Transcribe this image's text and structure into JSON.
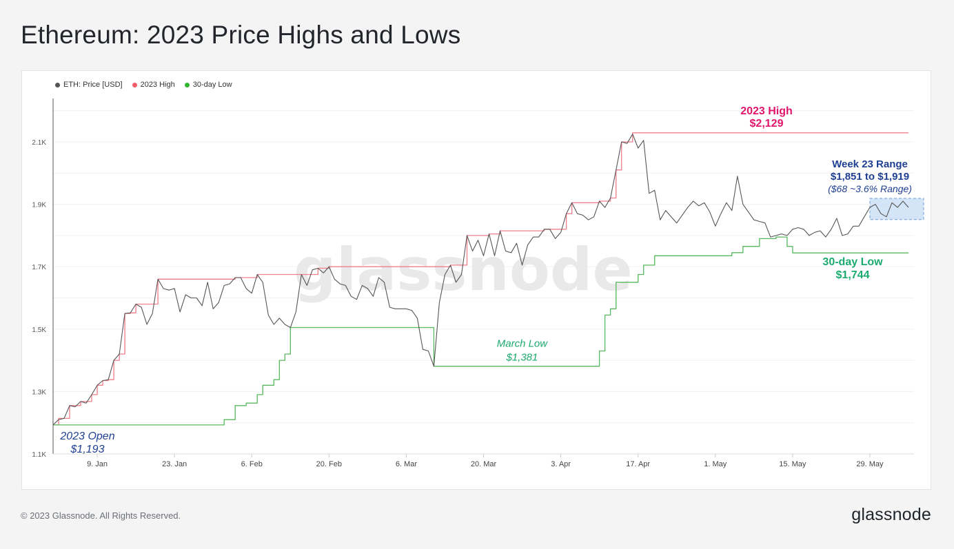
{
  "page": {
    "title": "Ethereum: 2023 Price Highs and Lows",
    "copyright": "© 2023 Glassnode. All Rights Reserved.",
    "logo": "glassnode",
    "watermark": "glassnode"
  },
  "colors": {
    "price": "#555555",
    "high": "#ef7f8a",
    "low": "#57b85d",
    "high_annotation": "#e0156b",
    "low_annotation": "#1bab6e",
    "blue_annotation": "#1f3f93",
    "range_fill": "#c7dcf5",
    "range_border": "#6b9bdc"
  },
  "chart_data": {
    "type": "line",
    "title": "Ethereum: 2023 Price Highs and Lows",
    "xlabel": "",
    "ylabel": "",
    "x_range": [
      "2023-01-01",
      "2023-06-06"
    ],
    "ylim": [
      1100,
      2250
    ],
    "yticks": [
      {
        "value": 1100,
        "label": "1.1K"
      },
      {
        "value": 1300,
        "label": "1.3K"
      },
      {
        "value": 1500,
        "label": "1.5K"
      },
      {
        "value": 1700,
        "label": "1.7K"
      },
      {
        "value": 1900,
        "label": "1.9K"
      },
      {
        "value": 2100,
        "label": "2.1K"
      }
    ],
    "xticks": [
      {
        "date": "2023-01-09",
        "label": "9. Jan"
      },
      {
        "date": "2023-01-23",
        "label": "23. Jan"
      },
      {
        "date": "2023-02-06",
        "label": "6. Feb"
      },
      {
        "date": "2023-02-20",
        "label": "20. Feb"
      },
      {
        "date": "2023-03-06",
        "label": "6. Mar"
      },
      {
        "date": "2023-03-20",
        "label": "20. Mar"
      },
      {
        "date": "2023-04-03",
        "label": "3. Apr"
      },
      {
        "date": "2023-04-17",
        "label": "17. Apr"
      },
      {
        "date": "2023-05-01",
        "label": "1. May"
      },
      {
        "date": "2023-05-15",
        "label": "15. May"
      },
      {
        "date": "2023-05-29",
        "label": "29. May"
      }
    ],
    "legend": {
      "placement": "top-left"
    },
    "grid": {
      "horizontal": true,
      "vertical": false
    },
    "series": [
      {
        "name": "ETH: Price [USD]",
        "points": [
          [
            "2023-01-01",
            1193
          ],
          [
            "2023-01-02",
            1210
          ],
          [
            "2023-01-03",
            1214
          ],
          [
            "2023-01-04",
            1255
          ],
          [
            "2023-01-05",
            1251
          ],
          [
            "2023-01-06",
            1268
          ],
          [
            "2023-01-07",
            1263
          ],
          [
            "2023-01-08",
            1290
          ],
          [
            "2023-01-09",
            1320
          ],
          [
            "2023-01-10",
            1335
          ],
          [
            "2023-01-11",
            1338
          ],
          [
            "2023-01-12",
            1400
          ],
          [
            "2023-01-13",
            1420
          ],
          [
            "2023-01-14",
            1550
          ],
          [
            "2023-01-15",
            1552
          ],
          [
            "2023-01-16",
            1580
          ],
          [
            "2023-01-17",
            1570
          ],
          [
            "2023-01-18",
            1515
          ],
          [
            "2023-01-19",
            1550
          ],
          [
            "2023-01-20",
            1660
          ],
          [
            "2023-01-21",
            1630
          ],
          [
            "2023-01-22",
            1625
          ],
          [
            "2023-01-23",
            1630
          ],
          [
            "2023-01-24",
            1555
          ],
          [
            "2023-01-25",
            1610
          ],
          [
            "2023-01-26",
            1600
          ],
          [
            "2023-01-27",
            1600
          ],
          [
            "2023-01-28",
            1575
          ],
          [
            "2023-01-29",
            1650
          ],
          [
            "2023-01-30",
            1565
          ],
          [
            "2023-01-31",
            1585
          ],
          [
            "2023-02-01",
            1640
          ],
          [
            "2023-02-02",
            1645
          ],
          [
            "2023-02-03",
            1665
          ],
          [
            "2023-02-04",
            1665
          ],
          [
            "2023-02-05",
            1630
          ],
          [
            "2023-02-06",
            1615
          ],
          [
            "2023-02-07",
            1675
          ],
          [
            "2023-02-08",
            1650
          ],
          [
            "2023-02-09",
            1545
          ],
          [
            "2023-02-10",
            1515
          ],
          [
            "2023-02-11",
            1535
          ],
          [
            "2023-02-12",
            1515
          ],
          [
            "2023-02-13",
            1505
          ],
          [
            "2023-02-14",
            1555
          ],
          [
            "2023-02-15",
            1675
          ],
          [
            "2023-02-16",
            1640
          ],
          [
            "2023-02-17",
            1690
          ],
          [
            "2023-02-18",
            1695
          ],
          [
            "2023-02-19",
            1680
          ],
          [
            "2023-02-20",
            1700
          ],
          [
            "2023-02-21",
            1660
          ],
          [
            "2023-02-22",
            1645
          ],
          [
            "2023-02-23",
            1640
          ],
          [
            "2023-02-24",
            1605
          ],
          [
            "2023-02-25",
            1595
          ],
          [
            "2023-02-26",
            1640
          ],
          [
            "2023-02-27",
            1630
          ],
          [
            "2023-02-28",
            1605
          ],
          [
            "2023-03-01",
            1665
          ],
          [
            "2023-03-02",
            1650
          ],
          [
            "2023-03-03",
            1570
          ],
          [
            "2023-03-04",
            1565
          ],
          [
            "2023-03-05",
            1565
          ],
          [
            "2023-03-06",
            1565
          ],
          [
            "2023-03-07",
            1560
          ],
          [
            "2023-03-08",
            1535
          ],
          [
            "2023-03-09",
            1435
          ],
          [
            "2023-03-10",
            1430
          ],
          [
            "2023-03-11",
            1381
          ],
          [
            "2023-03-12",
            1585
          ],
          [
            "2023-03-13",
            1675
          ],
          [
            "2023-03-14",
            1705
          ],
          [
            "2023-03-15",
            1650
          ],
          [
            "2023-03-16",
            1675
          ],
          [
            "2023-03-17",
            1800
          ],
          [
            "2023-03-18",
            1750
          ],
          [
            "2023-03-19",
            1785
          ],
          [
            "2023-03-20",
            1735
          ],
          [
            "2023-03-21",
            1805
          ],
          [
            "2023-03-22",
            1735
          ],
          [
            "2023-03-23",
            1815
          ],
          [
            "2023-03-24",
            1750
          ],
          [
            "2023-03-25",
            1745
          ],
          [
            "2023-03-26",
            1775
          ],
          [
            "2023-03-27",
            1705
          ],
          [
            "2023-03-28",
            1770
          ],
          [
            "2023-03-29",
            1795
          ],
          [
            "2023-03-30",
            1795
          ],
          [
            "2023-03-31",
            1820
          ],
          [
            "2023-04-01",
            1820
          ],
          [
            "2023-04-02",
            1790
          ],
          [
            "2023-04-03",
            1810
          ],
          [
            "2023-04-04",
            1870
          ],
          [
            "2023-04-05",
            1905
          ],
          [
            "2023-04-06",
            1870
          ],
          [
            "2023-04-07",
            1865
          ],
          [
            "2023-04-08",
            1850
          ],
          [
            "2023-04-09",
            1860
          ],
          [
            "2023-04-10",
            1910
          ],
          [
            "2023-04-11",
            1890
          ],
          [
            "2023-04-12",
            1920
          ],
          [
            "2023-04-13",
            2010
          ],
          [
            "2023-04-14",
            2100
          ],
          [
            "2023-04-15",
            2095
          ],
          [
            "2023-04-16",
            2125
          ],
          [
            "2023-04-17",
            2080
          ],
          [
            "2023-04-18",
            2105
          ],
          [
            "2023-04-19",
            1935
          ],
          [
            "2023-04-20",
            1945
          ],
          [
            "2023-04-21",
            1850
          ],
          [
            "2023-04-22",
            1880
          ],
          [
            "2023-04-23",
            1860
          ],
          [
            "2023-04-24",
            1840
          ],
          [
            "2023-04-25",
            1865
          ],
          [
            "2023-04-26",
            1890
          ],
          [
            "2023-04-27",
            1910
          ],
          [
            "2023-04-28",
            1895
          ],
          [
            "2023-04-29",
            1905
          ],
          [
            "2023-04-30",
            1875
          ],
          [
            "2023-05-01",
            1830
          ],
          [
            "2023-05-02",
            1870
          ],
          [
            "2023-05-03",
            1905
          ],
          [
            "2023-05-04",
            1880
          ],
          [
            "2023-05-05",
            1990
          ],
          [
            "2023-05-06",
            1900
          ],
          [
            "2023-05-07",
            1875
          ],
          [
            "2023-05-08",
            1850
          ],
          [
            "2023-05-09",
            1845
          ],
          [
            "2023-05-10",
            1840
          ],
          [
            "2023-05-11",
            1795
          ],
          [
            "2023-05-12",
            1800
          ],
          [
            "2023-05-13",
            1805
          ],
          [
            "2023-05-14",
            1800
          ],
          [
            "2023-05-15",
            1820
          ],
          [
            "2023-05-16",
            1825
          ],
          [
            "2023-05-17",
            1820
          ],
          [
            "2023-05-18",
            1800
          ],
          [
            "2023-05-19",
            1810
          ],
          [
            "2023-05-20",
            1815
          ],
          [
            "2023-05-21",
            1795
          ],
          [
            "2023-05-22",
            1820
          ],
          [
            "2023-05-23",
            1855
          ],
          [
            "2023-05-24",
            1800
          ],
          [
            "2023-05-25",
            1805
          ],
          [
            "2023-05-26",
            1830
          ],
          [
            "2023-05-27",
            1830
          ],
          [
            "2023-05-28",
            1860
          ],
          [
            "2023-05-29",
            1890
          ],
          [
            "2023-05-30",
            1900
          ],
          [
            "2023-05-31",
            1870
          ],
          [
            "2023-06-01",
            1860
          ],
          [
            "2023-06-02",
            1905
          ],
          [
            "2023-06-03",
            1890
          ],
          [
            "2023-06-04",
            1910
          ],
          [
            "2023-06-05",
            1890
          ]
        ]
      },
      {
        "name": "2023 High",
        "points": [
          [
            "2023-01-01",
            1193
          ],
          [
            "2023-01-02",
            1214
          ],
          [
            "2023-01-04",
            1255
          ],
          [
            "2023-01-06",
            1268
          ],
          [
            "2023-01-08",
            1290
          ],
          [
            "2023-01-09",
            1320
          ],
          [
            "2023-01-10",
            1335
          ],
          [
            "2023-01-11",
            1338
          ],
          [
            "2023-01-12",
            1400
          ],
          [
            "2023-01-13",
            1420
          ],
          [
            "2023-01-14",
            1550
          ],
          [
            "2023-01-15",
            1552
          ],
          [
            "2023-01-16",
            1580
          ],
          [
            "2023-01-20",
            1660
          ],
          [
            "2023-02-03",
            1665
          ],
          [
            "2023-02-07",
            1675
          ],
          [
            "2023-02-18",
            1695
          ],
          [
            "2023-02-20",
            1700
          ],
          [
            "2023-03-14",
            1705
          ],
          [
            "2023-03-17",
            1800
          ],
          [
            "2023-03-21",
            1805
          ],
          [
            "2023-03-23",
            1815
          ],
          [
            "2023-03-31",
            1820
          ],
          [
            "2023-04-04",
            1870
          ],
          [
            "2023-04-05",
            1905
          ],
          [
            "2023-04-10",
            1910
          ],
          [
            "2023-04-12",
            1920
          ],
          [
            "2023-04-13",
            2010
          ],
          [
            "2023-04-14",
            2100
          ],
          [
            "2023-04-16",
            2129
          ],
          [
            "2023-06-05",
            2129
          ]
        ]
      },
      {
        "name": "30-day Low",
        "points": [
          [
            "2023-01-01",
            1193
          ],
          [
            "2023-01-31",
            1193
          ],
          [
            "2023-02-01",
            1210
          ],
          [
            "2023-02-03",
            1255
          ],
          [
            "2023-02-05",
            1263
          ],
          [
            "2023-02-07",
            1290
          ],
          [
            "2023-02-08",
            1320
          ],
          [
            "2023-02-10",
            1338
          ],
          [
            "2023-02-11",
            1400
          ],
          [
            "2023-02-12",
            1420
          ],
          [
            "2023-02-13",
            1505
          ],
          [
            "2023-03-10",
            1505
          ],
          [
            "2023-03-11",
            1381
          ],
          [
            "2023-04-09",
            1381
          ],
          [
            "2023-04-10",
            1430
          ],
          [
            "2023-04-11",
            1545
          ],
          [
            "2023-04-12",
            1565
          ],
          [
            "2023-04-13",
            1650
          ],
          [
            "2023-04-17",
            1675
          ],
          [
            "2023-04-18",
            1705
          ],
          [
            "2023-04-20",
            1735
          ],
          [
            "2023-05-03",
            1735
          ],
          [
            "2023-05-04",
            1745
          ],
          [
            "2023-05-06",
            1765
          ],
          [
            "2023-05-09",
            1790
          ],
          [
            "2023-05-11",
            1790
          ],
          [
            "2023-05-12",
            1795
          ],
          [
            "2023-05-14",
            1765
          ],
          [
            "2023-05-15",
            1744
          ],
          [
            "2023-06-05",
            1744
          ]
        ]
      }
    ],
    "annotations": {
      "open": {
        "label": "2023 Open",
        "value": "$1,193",
        "date": "2023-01-01",
        "price": 1193
      },
      "high": {
        "label": "2023 High",
        "value": "$2,129"
      },
      "march_low": {
        "label": "March Low",
        "value": "$1,381",
        "date": "2023-03-11",
        "price": 1381
      },
      "range": {
        "label": "Week 23 Range",
        "value": "$1,851 to $1,919",
        "note": "($68 ~3.6% Range)",
        "from": "2023-05-29",
        "to": "2023-06-06",
        "low": 1851,
        "high": 1919
      },
      "low": {
        "label": "30-day Low",
        "value": "$1,744"
      }
    }
  }
}
